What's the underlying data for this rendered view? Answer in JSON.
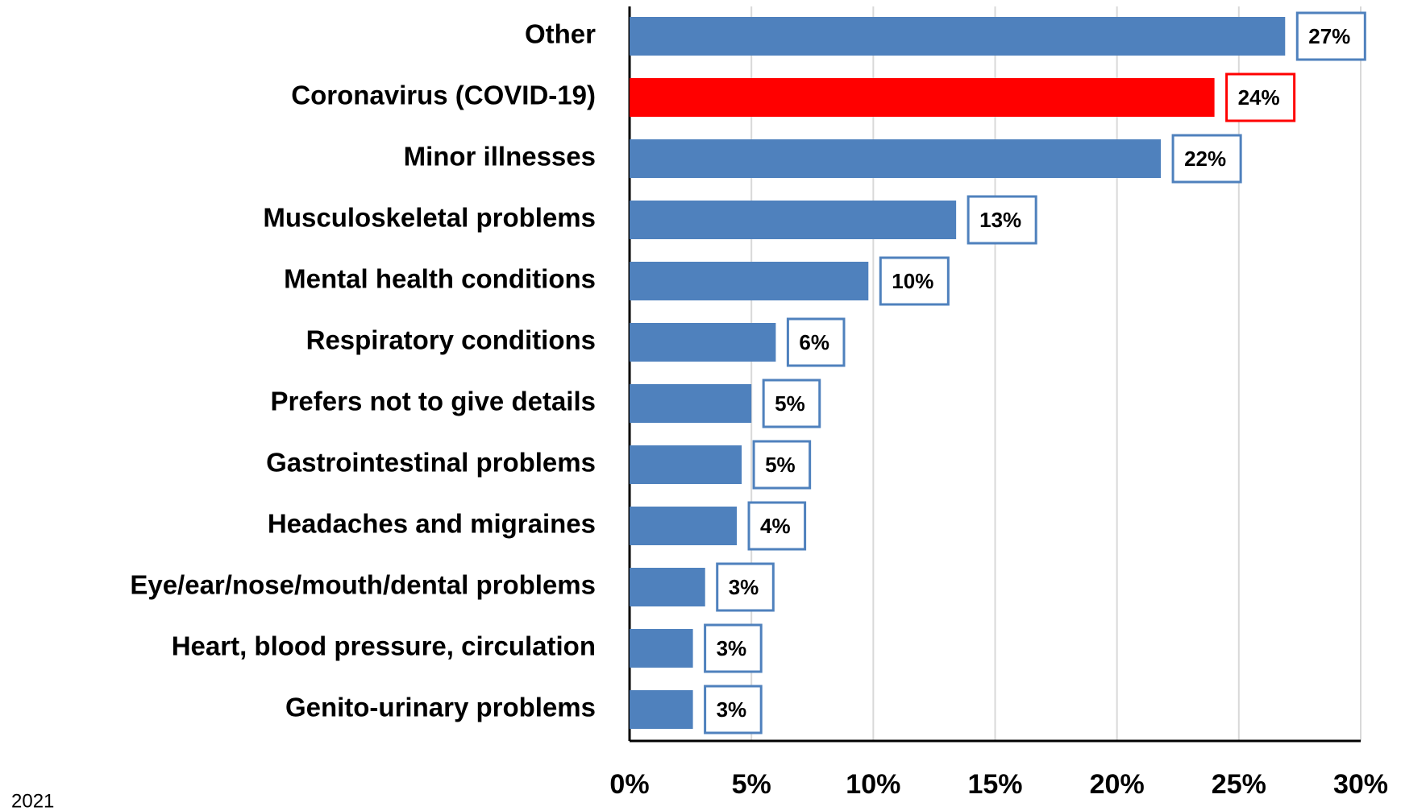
{
  "chart_data": {
    "type": "bar",
    "orientation": "horizontal",
    "categories": [
      "Other",
      "Coronavirus (COVID-19)",
      "Minor illnesses",
      "Musculoskeletal problems",
      "Mental health conditions",
      "Respiratory conditions",
      "Prefers not to give details",
      "Gastrointestinal problems",
      "Headaches and migraines",
      "Eye/ear/nose/mouth/dental problems",
      "Heart, blood pressure, circulation",
      "Genito-urinary problems"
    ],
    "values": [
      26.9,
      24.0,
      21.8,
      13.4,
      9.8,
      6.0,
      5.0,
      4.6,
      4.4,
      3.1,
      2.6,
      2.6
    ],
    "value_labels": [
      "27%",
      "24%",
      "22%",
      "13%",
      "10%",
      "6%",
      "5%",
      "5%",
      "4%",
      "3%",
      "3%",
      "3%"
    ],
    "colors": [
      "#4f81bd",
      "#ff0000",
      "#4f81bd",
      "#4f81bd",
      "#4f81bd",
      "#4f81bd",
      "#4f81bd",
      "#4f81bd",
      "#4f81bd",
      "#4f81bd",
      "#4f81bd",
      "#4f81bd"
    ],
    "xlim": [
      0,
      30
    ],
    "xticks": [
      {
        "value": 0,
        "label": "0%"
      },
      {
        "value": 5,
        "label": "5%"
      },
      {
        "value": 10,
        "label": "10%"
      },
      {
        "value": 15,
        "label": "15%"
      },
      {
        "value": 20,
        "label": "20%"
      },
      {
        "value": 25,
        "label": "25%"
      },
      {
        "value": 30,
        "label": "30%"
      }
    ],
    "grid": true,
    "note": "2021"
  }
}
